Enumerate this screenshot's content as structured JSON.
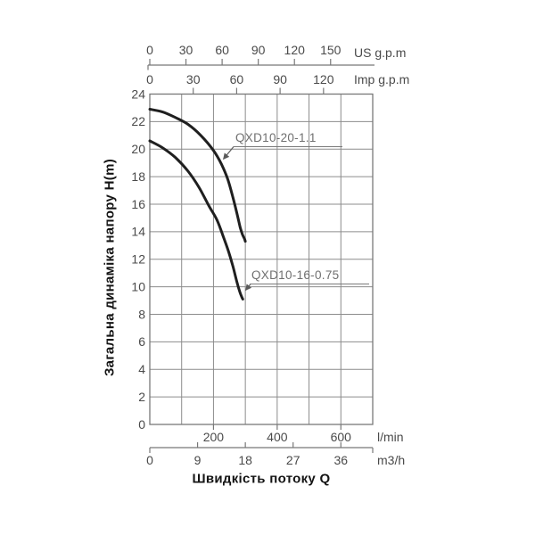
{
  "chart_data": {
    "type": "line",
    "title": "",
    "xlabel": "Швидкість потоку Q",
    "ylabel": "Загальна динаміка напору H(m)",
    "grid": true,
    "x_base_unit": "l/min",
    "xlim_lmin": [
      0,
      700
    ],
    "x_grid_step_lmin": 100,
    "ylim": [
      0,
      24
    ],
    "y_ticks": [
      0,
      2,
      4,
      6,
      8,
      10,
      12,
      14,
      16,
      18,
      20,
      22,
      24
    ],
    "x_axes": [
      {
        "id": "us_gpm",
        "label": "US g.p.m",
        "position": "top-outer",
        "lmin_per_unit": 3.785,
        "ticks": [
          0,
          30,
          60,
          90,
          120,
          150
        ]
      },
      {
        "id": "imp_gpm",
        "label": "Imp g.p.m",
        "position": "top-inner",
        "lmin_per_unit": 4.546,
        "ticks": [
          0,
          30,
          60,
          90,
          120
        ]
      },
      {
        "id": "l_min",
        "label": "l/min",
        "position": "bottom-inner",
        "lmin_per_unit": 1,
        "ticks": [
          200,
          400,
          600
        ]
      },
      {
        "id": "m3_h",
        "label": "m3/h",
        "position": "bottom-outer",
        "lmin_per_unit": 16.6667,
        "ticks": [
          0,
          9,
          18,
          27,
          36
        ]
      }
    ],
    "series": [
      {
        "name": "QXD10-20-1.1",
        "points": [
          [
            0,
            22.9
          ],
          [
            40,
            22.7
          ],
          [
            80,
            22.3
          ],
          [
            120,
            21.8
          ],
          [
            160,
            21.0
          ],
          [
            200,
            19.9
          ],
          [
            225,
            18.9
          ],
          [
            245,
            17.8
          ],
          [
            262,
            16.4
          ],
          [
            275,
            15.2
          ],
          [
            284,
            14.3
          ],
          [
            291,
            13.8
          ],
          [
            297,
            13.5
          ],
          [
            300,
            13.3
          ]
        ]
      },
      {
        "name": "QXD10-16-0.75",
        "points": [
          [
            0,
            20.6
          ],
          [
            40,
            20.1
          ],
          [
            80,
            19.4
          ],
          [
            120,
            18.4
          ],
          [
            155,
            17.2
          ],
          [
            185,
            15.9
          ],
          [
            210,
            14.9
          ],
          [
            230,
            13.7
          ],
          [
            248,
            12.5
          ],
          [
            262,
            11.4
          ],
          [
            274,
            10.3
          ],
          [
            283,
            9.6
          ],
          [
            289,
            9.25
          ],
          [
            292,
            9.1
          ]
        ]
      }
    ],
    "colors": {
      "curve": "#1f1f1f",
      "grid": "#8c8c8c",
      "border": "#787878",
      "axis_line": "#787878",
      "tick_text": "#4a4a4a",
      "title_text": "#141414",
      "callout": "#5a5a5a"
    }
  }
}
